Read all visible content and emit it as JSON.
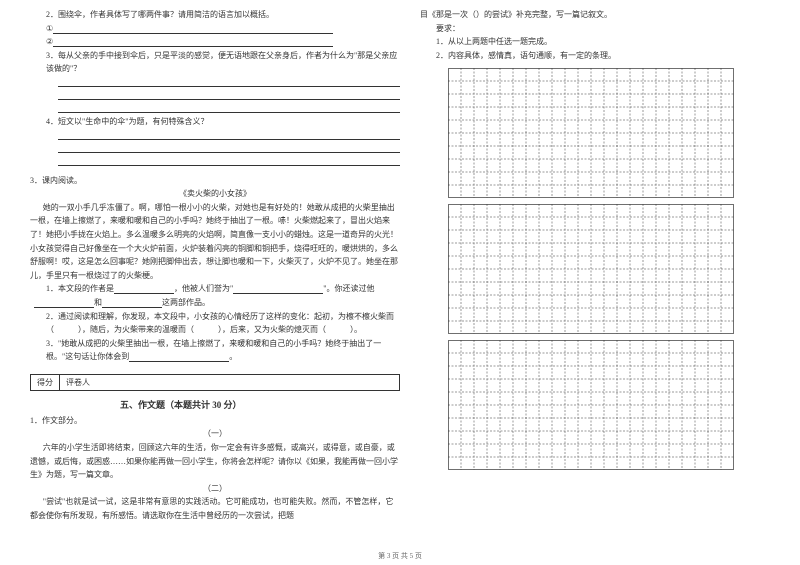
{
  "left": {
    "q2": "2．围绕伞，作者具体写了哪两件事？请用简洁的语言加以概括。",
    "num1": "①",
    "num2": "②",
    "q3": "3．每从父亲的手中接到伞后，只是平淡的感觉，便无语地跟在父亲身后，作者为什么为\"那是父亲应该做的\"？",
    "q4": "4．短文以\"生命中的伞\"为题，有何特殊含义？",
    "inclass": "3．课内阅读。",
    "story_title": "《卖火柴的小女孩》",
    "p1": "她的一双小手几乎冻僵了。啊，哪怕一根小小的火柴，对她也是有好处的！她敢从成把的火柴里抽出一根，在墙上擦燃了，来暖和暖和自己的小手吗？她终于抽出了一根。哧！火柴燃起来了，冒出火焰来了！她把小手拢在火焰上。多么温暖多么明亮的火焰啊，简直像一支小小的蜡烛。这是一道奇异的火光！小女孩觉得自己好像坐在一个大火炉前面，火炉装着闪亮的铜脚和铜把手，烧得旺旺的，暖烘烘的，多么舒服啊！哎，这是怎么回事呢？她刚把脚伸出去，想让脚也暖和一下，火柴灭了，火炉不见了。她坐在那儿，手里只有一根烧过了的火柴梗。",
    "s1a": "1．本文段的作者是",
    "s1b": "，他被人们誉为\"",
    "s1c": "\"。你还读过他",
    "s1d": "和",
    "s1e": "这两部作品。",
    "s2": "2．通过阅读和理解，你发现，本文段中，小女孩的心情经历了这样的变化：起初，为檫不檫火柴而（　　　），随后，为火柴带来的温暖而（　　　），后来，又为火柴的熄灭而（　　　）。",
    "s3a": "3．\"她敢从成把的火柴里抽出一根，在墙上擦燃了，来暖和暖和自己的小手吗？她终于抽出了一根。\"这句话让你体会到",
    "s3b": "。",
    "box_score": "得分",
    "box_reviewer": "评卷人",
    "part5": "五、作文题（本题共计 30 分）",
    "essay_label": "1．作文部分。",
    "e1_num": "（一）",
    "e1_text": "六年的小学生活即将结束，回顾这六年的生活，你一定会有许多感慨，或高兴，或得意，或自豪，或遗憾，或后悔，或困惑……如果你能再做一回小学生，你将会怎样呢？请你以《如果，我能再做一回小学生》为题，写一篇文章。",
    "e2_num": "（二）",
    "e2_text": "\"尝试\"也就是试一试，这是非常有意思的实践活动。它可能成功，也可能失败。然而，不管怎样，它都会使你有所发现，有所感悟。请选取你在生活中曾经历的一次尝试，把题"
  },
  "right": {
    "top": "目《那是一次（）的尝试》补充完整，写一篇记叙文。",
    "req": "　　要求：",
    "req1": "　　1．从以上两题中任选一题完成。",
    "req2": "　　2．内容具体，感情真，语句通顺，有一定的条理。",
    "grid": {
      "cols": 22,
      "rows_per_block": 10,
      "blocks": 3,
      "cell": 13
    }
  },
  "footer": "第 3 页 共 5 页"
}
